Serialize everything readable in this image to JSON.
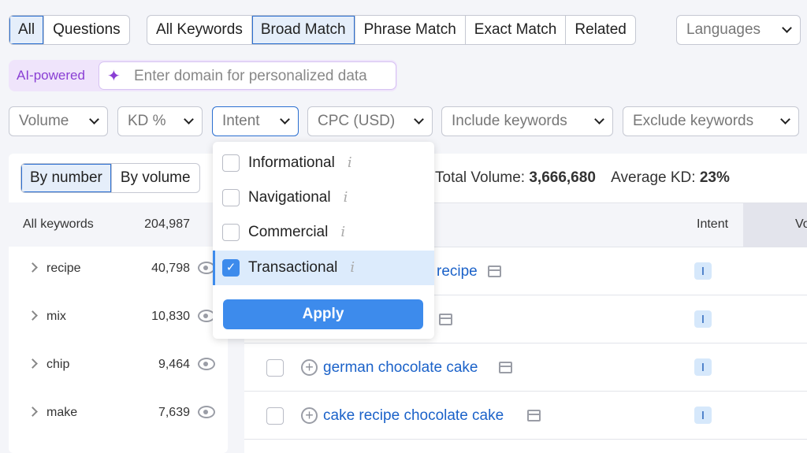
{
  "type_tabs": [
    {
      "label": "All",
      "selected": true
    },
    {
      "label": "Questions",
      "selected": false
    }
  ],
  "match_tabs": [
    {
      "label": "All Keywords",
      "selected": false
    },
    {
      "label": "Broad Match",
      "selected": true
    },
    {
      "label": "Phrase Match",
      "selected": false
    },
    {
      "label": "Exact Match",
      "selected": false
    },
    {
      "label": "Related",
      "selected": false
    }
  ],
  "languages": "Languages",
  "ai": {
    "label": "AI-powered",
    "placeholder": "Enter domain for personalized data"
  },
  "filters": [
    "Volume",
    "KD %",
    "Intent",
    "CPC (USD)",
    "Include keywords",
    "Exclude keywords"
  ],
  "sidebar": {
    "tabs": [
      "By number",
      "By volume"
    ],
    "all_label": "All keywords",
    "all_count": "204,987",
    "items": [
      {
        "label": "recipe",
        "count": "40,798"
      },
      {
        "label": "mix",
        "count": "10,830"
      },
      {
        "label": "chip",
        "count": "9,464"
      },
      {
        "label": "make",
        "count": "7,639"
      }
    ]
  },
  "summary": {
    "total_label": "Total Volume:",
    "total": "3,666,680",
    "kd_label": "Average KD:",
    "kd": "23%"
  },
  "table": {
    "col_intent": "Intent",
    "col_volume": "Vo",
    "rows": [
      {
        "keyword": "recipe",
        "intent": "I"
      },
      {
        "keyword": "",
        "intent": "I"
      },
      {
        "keyword": "german chocolate cake",
        "intent": "I"
      },
      {
        "keyword": "cake recipe chocolate cake",
        "intent": "I"
      }
    ]
  },
  "intent_dropdown": {
    "options": [
      {
        "label": "Informational",
        "checked": false
      },
      {
        "label": "Navigational",
        "checked": false
      },
      {
        "label": "Commercial",
        "checked": false
      },
      {
        "label": "Transactional",
        "checked": true
      }
    ],
    "apply": "Apply"
  },
  "colors": {
    "accent": "#3d8bec",
    "link": "#1b62c9",
    "ai_purple": "#8a3fd4"
  }
}
